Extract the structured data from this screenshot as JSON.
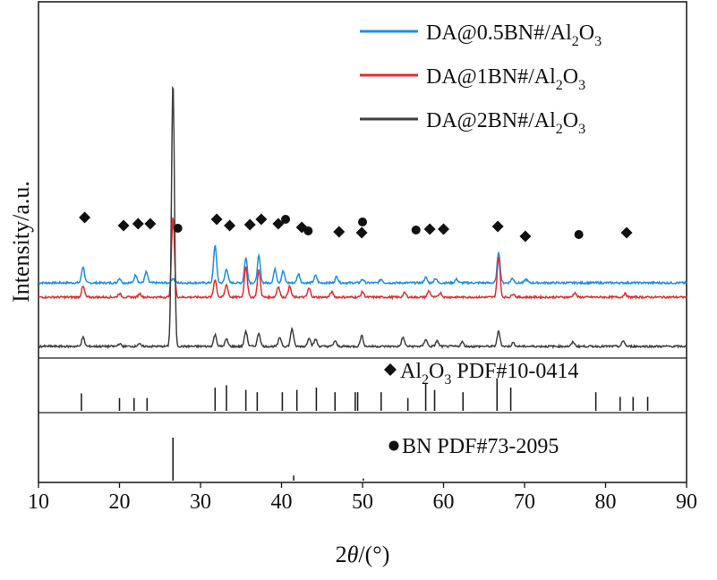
{
  "chart_data": {
    "type": "line",
    "xlabel": "2θ/(°)",
    "xlabel_prefix": "2",
    "xlabel_var": "θ",
    "xlabel_suffix": "/(°)",
    "ylabel": "Intensity/a.u.",
    "xlim": [
      10,
      90
    ],
    "xticks": [
      "10",
      "20",
      "30",
      "40",
      "50",
      "60",
      "70",
      "80",
      "90"
    ],
    "grid": false,
    "legend_position": "top-right",
    "series": [
      {
        "name": "DA@0.5BN#/Al2O3",
        "label_main": "DA@0.5BN#/Al",
        "label_sub1": "2",
        "label_mid": "O",
        "label_sub2": "3",
        "color": "#1f8ee0",
        "baseline": 0.82,
        "peaks": [
          [
            15.5,
            0.18
          ],
          [
            20.0,
            0.05
          ],
          [
            22.0,
            0.09
          ],
          [
            23.3,
            0.12
          ],
          [
            26.6,
            0.05
          ],
          [
            31.8,
            0.42
          ],
          [
            33.2,
            0.16
          ],
          [
            35.6,
            0.28
          ],
          [
            37.2,
            0.3
          ],
          [
            39.2,
            0.15
          ],
          [
            40.2,
            0.13
          ],
          [
            42.1,
            0.1
          ],
          [
            44.2,
            0.08
          ],
          [
            46.8,
            0.07
          ],
          [
            50.0,
            0.04
          ],
          [
            52.3,
            0.04
          ],
          [
            57.8,
            0.06
          ],
          [
            59.0,
            0.05
          ],
          [
            61.6,
            0.04
          ],
          [
            66.8,
            0.35
          ],
          [
            68.5,
            0.05
          ],
          [
            70.2,
            0.04
          ]
        ]
      },
      {
        "name": "DA@1BN#/Al2O3",
        "label_main": "DA@1BN#/Al",
        "label_sub1": "2",
        "label_mid": "O",
        "label_sub2": "3",
        "color": "#e03030",
        "baseline": 0.66,
        "peaks": [
          [
            15.5,
            0.12
          ],
          [
            20.0,
            0.04
          ],
          [
            22.5,
            0.04
          ],
          [
            26.6,
            0.9
          ],
          [
            31.8,
            0.2
          ],
          [
            33.2,
            0.14
          ],
          [
            35.6,
            0.35
          ],
          [
            37.2,
            0.3
          ],
          [
            39.6,
            0.12
          ],
          [
            41.0,
            0.12
          ],
          [
            43.4,
            0.1
          ],
          [
            46.2,
            0.06
          ],
          [
            50.0,
            0.06
          ],
          [
            55.2,
            0.05
          ],
          [
            58.2,
            0.07
          ],
          [
            59.6,
            0.05
          ],
          [
            66.8,
            0.45
          ],
          [
            68.6,
            0.04
          ],
          [
            76.2,
            0.05
          ],
          [
            82.4,
            0.04
          ]
        ]
      },
      {
        "name": "DA@2BN#/Al2O3",
        "label_main": "DA@2BN#/Al",
        "label_sub1": "2",
        "label_mid": "O",
        "label_sub2": "3",
        "color": "#404040",
        "baseline": 0.11,
        "peaks": [
          [
            15.5,
            0.1
          ],
          [
            20.0,
            0.03
          ],
          [
            22.4,
            0.03
          ],
          [
            26.6,
            2.95
          ],
          [
            31.8,
            0.13
          ],
          [
            33.2,
            0.08
          ],
          [
            35.6,
            0.17
          ],
          [
            37.2,
            0.15
          ],
          [
            39.8,
            0.1
          ],
          [
            41.3,
            0.2
          ],
          [
            43.4,
            0.1
          ],
          [
            44.2,
            0.08
          ],
          [
            46.6,
            0.06
          ],
          [
            49.9,
            0.12
          ],
          [
            55.0,
            0.1
          ],
          [
            57.8,
            0.08
          ],
          [
            59.2,
            0.06
          ],
          [
            62.3,
            0.05
          ],
          [
            66.8,
            0.17
          ],
          [
            68.6,
            0.04
          ],
          [
            76.0,
            0.05
          ],
          [
            82.2,
            0.06
          ]
        ]
      }
    ],
    "markers": {
      "diamonds": [
        [
          15.7,
          1.55
        ],
        [
          20.5,
          1.46
        ],
        [
          22.3,
          1.48
        ],
        [
          23.8,
          1.48
        ],
        [
          32.0,
          1.53
        ],
        [
          33.6,
          1.46
        ],
        [
          36.1,
          1.47
        ],
        [
          37.5,
          1.53
        ],
        [
          39.6,
          1.48
        ],
        [
          42.5,
          1.44
        ],
        [
          47.1,
          1.39
        ],
        [
          49.9,
          1.38
        ],
        [
          58.3,
          1.42
        ],
        [
          60.0,
          1.42
        ],
        [
          66.7,
          1.45
        ],
        [
          70.1,
          1.34
        ],
        [
          82.6,
          1.38
        ]
      ],
      "dots": [
        [
          27.2,
          1.43
        ],
        [
          40.5,
          1.53
        ],
        [
          43.3,
          1.4
        ],
        [
          50.0,
          1.5
        ],
        [
          56.6,
          1.41
        ],
        [
          76.7,
          1.36
        ]
      ]
    },
    "references": [
      {
        "label_main": "Al",
        "label_sub1": "2",
        "label_mid": "O",
        "label_sub2": "3",
        "label_tail": " PDF#10-0414",
        "name": "Al2O3 PDF#10-0414",
        "marker": "diamond",
        "lines": [
          [
            15.3,
            0.75
          ],
          [
            20.0,
            0.55
          ],
          [
            21.8,
            0.55
          ],
          [
            23.4,
            0.55
          ],
          [
            31.8,
            1.0
          ],
          [
            33.2,
            1.1
          ],
          [
            35.6,
            0.9
          ],
          [
            37.0,
            0.8
          ],
          [
            40.1,
            0.8
          ],
          [
            41.9,
            0.9
          ],
          [
            44.3,
            1.0
          ],
          [
            46.6,
            0.8
          ],
          [
            49.1,
            0.8
          ],
          [
            49.4,
            0.8
          ],
          [
            52.3,
            0.8
          ],
          [
            55.6,
            0.55
          ],
          [
            57.8,
            1.2
          ],
          [
            58.9,
            0.9
          ],
          [
            62.4,
            0.8
          ],
          [
            66.6,
            1.4
          ],
          [
            68.3,
            1.0
          ],
          [
            78.8,
            0.8
          ],
          [
            81.8,
            0.6
          ],
          [
            83.4,
            0.6
          ],
          [
            85.2,
            0.6
          ]
        ]
      },
      {
        "label_main": "BN PDF#73-2095",
        "name": "BN PDF#73-2095",
        "marker": "dot",
        "lines": [
          [
            26.6,
            1.0
          ],
          [
            41.5,
            0.12
          ],
          [
            50.1,
            0.05
          ]
        ]
      }
    ]
  }
}
